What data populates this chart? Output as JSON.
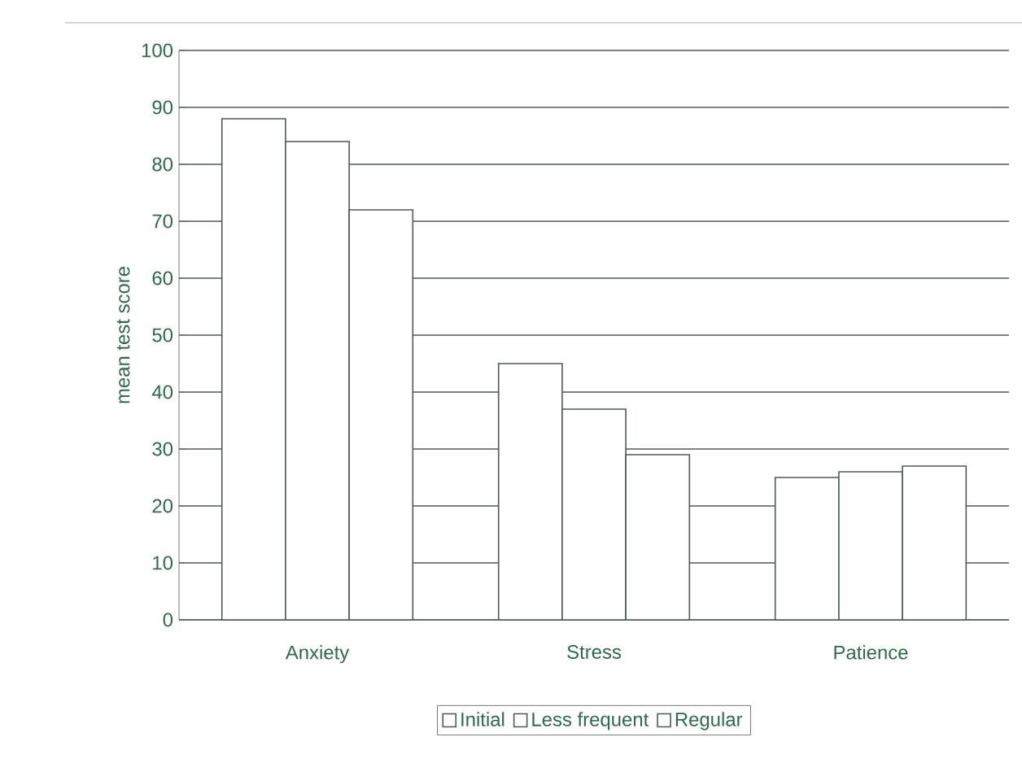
{
  "chart_data": {
    "type": "bar",
    "ylabel": "mean test score",
    "categories": [
      "Anxiety",
      "Stress",
      "Patience"
    ],
    "series": [
      {
        "name": "Initial",
        "color": "#ffffff",
        "values": [
          88,
          45,
          25
        ]
      },
      {
        "name": "Less frequent",
        "color": "#ffffff",
        "values": [
          84,
          37,
          26
        ]
      },
      {
        "name": "Regular",
        "color": "#ffffff",
        "values": [
          72,
          29,
          27
        ]
      }
    ],
    "ylim": [
      0,
      100
    ],
    "yticks": [
      0,
      10,
      20,
      30,
      40,
      50,
      60,
      70,
      80,
      90,
      100
    ],
    "grid": "y",
    "legend": "bottom"
  }
}
